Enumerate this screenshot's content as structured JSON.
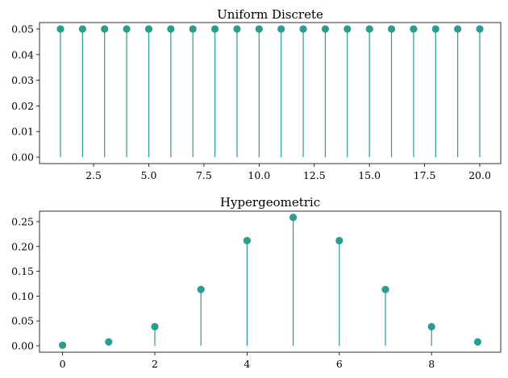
{
  "colors": {
    "stem": "#2a9d8f",
    "marker": "#2a9d8f",
    "axis": "#000000"
  },
  "chart_data": [
    {
      "type": "stem",
      "title": "Uniform Discrete",
      "xlabel": "",
      "ylabel": "",
      "x": [
        1,
        2,
        3,
        4,
        5,
        6,
        7,
        8,
        9,
        10,
        11,
        12,
        13,
        14,
        15,
        16,
        17,
        18,
        19,
        20
      ],
      "y": [
        0.05,
        0.05,
        0.05,
        0.05,
        0.05,
        0.05,
        0.05,
        0.05,
        0.05,
        0.05,
        0.05,
        0.05,
        0.05,
        0.05,
        0.05,
        0.05,
        0.05,
        0.05,
        0.05,
        0.05
      ],
      "xlim": [
        0.05,
        20.95
      ],
      "ylim": [
        -0.0025,
        0.0525
      ],
      "xticks": [
        2.5,
        5.0,
        7.5,
        10.0,
        12.5,
        15.0,
        17.5,
        20.0
      ],
      "xtick_labels": [
        "2.5",
        "5.0",
        "7.5",
        "10.0",
        "12.5",
        "15.0",
        "17.5",
        "20.0"
      ],
      "yticks": [
        0.0,
        0.01,
        0.02,
        0.03,
        0.04,
        0.05
      ],
      "ytick_labels": [
        "0.00",
        "0.01",
        "0.02",
        "0.03",
        "0.04",
        "0.05"
      ],
      "grid": false,
      "legend": "none"
    },
    {
      "type": "stem",
      "title": "Hypergeometric",
      "xlabel": "",
      "ylabel": "",
      "x": [
        0,
        1,
        2,
        3,
        4,
        5,
        6,
        7,
        8,
        9
      ],
      "y": [
        0.0011,
        0.0077,
        0.0383,
        0.1133,
        0.2117,
        0.2585,
        0.2117,
        0.1133,
        0.0383,
        0.0077
      ],
      "xlim": [
        -0.5,
        9.5
      ],
      "ylim": [
        -0.013,
        0.271
      ],
      "xticks": [
        0,
        2,
        4,
        6,
        8
      ],
      "xtick_labels": [
        "0",
        "2",
        "4",
        "6",
        "8"
      ],
      "yticks": [
        0.0,
        0.05,
        0.1,
        0.15,
        0.2,
        0.25
      ],
      "ytick_labels": [
        "0.00",
        "0.05",
        "0.10",
        "0.15",
        "0.20",
        "0.25"
      ],
      "grid": false,
      "legend": "none"
    }
  ]
}
